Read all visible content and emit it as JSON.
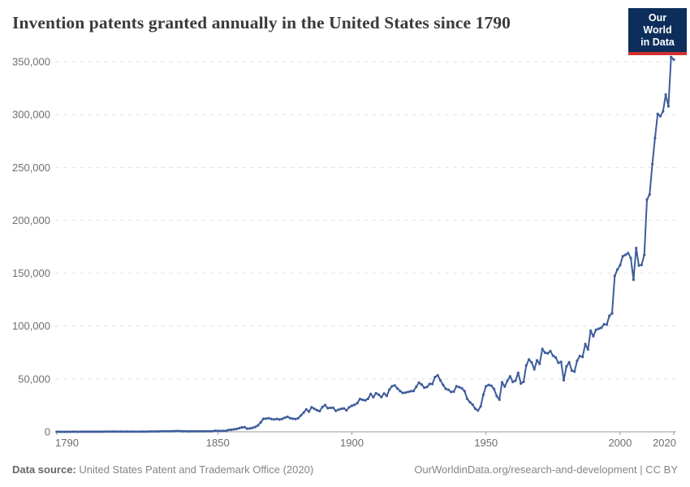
{
  "header": {
    "title": "Invention patents granted annually in the United States since 1790",
    "logo": {
      "line1": "Our World",
      "line2": "in Data",
      "bg_color": "#0d2e5b",
      "accent_color": "#cf3130"
    }
  },
  "footer": {
    "source_label": "Data source:",
    "source_text": " United States Patent and Trademark Office (2020)",
    "link": "OurWorldinData.org/research-and-development",
    "separator": " | ",
    "license": "CC BY"
  },
  "chart_data": {
    "type": "line",
    "title": "Invention patents granted annually in the United States since 1790",
    "xlabel": "",
    "ylabel": "",
    "x_start": 1790,
    "x_end": 2020,
    "ylim": [
      0,
      350000
    ],
    "grid": true,
    "legend": "none",
    "line_color": "#3e5c9a",
    "grid_color": "#e1e1e1",
    "axis_color": "#9a9a9a",
    "tick_text_color": "#6e6e6e",
    "y_ticks": [
      {
        "value": 0,
        "label": "0"
      },
      {
        "value": 50000,
        "label": "50,000"
      },
      {
        "value": 100000,
        "label": "100,000"
      },
      {
        "value": 150000,
        "label": "150,000"
      },
      {
        "value": 200000,
        "label": "200,000"
      },
      {
        "value": 250000,
        "label": "250,000"
      },
      {
        "value": 300000,
        "label": "300,000"
      },
      {
        "value": 350000,
        "label": "350,000"
      }
    ],
    "x_ticks": [
      {
        "value": 1790,
        "label": "1790",
        "anchor": "start"
      },
      {
        "value": 1850,
        "label": "1850",
        "anchor": "middle"
      },
      {
        "value": 1900,
        "label": "1900",
        "anchor": "middle"
      },
      {
        "value": 1950,
        "label": "1950",
        "anchor": "middle"
      },
      {
        "value": 2000,
        "label": "2000",
        "anchor": "middle"
      },
      {
        "value": 2020,
        "label": "2020",
        "anchor": "end"
      }
    ],
    "series": [
      {
        "name": "United States",
        "x_start_year": 1790,
        "values": [
          3,
          33,
          11,
          20,
          22,
          12,
          44,
          51,
          28,
          44,
          41,
          44,
          65,
          97,
          84,
          57,
          63,
          99,
          158,
          203,
          223,
          215,
          238,
          181,
          210,
          173,
          206,
          174,
          222,
          156,
          155,
          168,
          200,
          173,
          228,
          304,
          323,
          331,
          368,
          447,
          544,
          573,
          474,
          586,
          630,
          752,
          702,
          426,
          514,
          404,
          458,
          490,
          488,
          493,
          478,
          473,
          566,
          495,
          583,
          984,
          883,
          752,
          885,
          844,
          1755,
          1881,
          2302,
          2674,
          3455,
          4160,
          4357,
          3020,
          3214,
          3773,
          4630,
          6088,
          8863,
          12277,
          12526,
          12931,
          12137,
          11659,
          12180,
          11616,
          12230,
          13291,
          14169,
          12920,
          12345,
          12125,
          12903,
          15500,
          18091,
          21162,
          19118,
          23285,
          21767,
          20403,
          19551,
          23324,
          25313,
          22312,
          22647,
          22750,
          19855,
          20856,
          21822,
          22067,
          20377,
          23278,
          24644,
          25546,
          27119,
          31029,
          30258,
          29775,
          31170,
          35859,
          32735,
          36561,
          35141,
          32856,
          36198,
          33917,
          39892,
          43118,
          43892,
          40935,
          38452,
          36797,
          37060,
          37798,
          38369,
          38616,
          42574,
          46432,
          44733,
          41717,
          42357,
          45267,
          45226,
          51756,
          53458,
          48774,
          44420,
          40618,
          39782,
          37683,
          38061,
          43073,
          42238,
          41109,
          38449,
          31054,
          28053,
          25695,
          21803,
          20191,
          23963,
          35131,
          43040,
          44326,
          43616,
          40468,
          33809,
          30432,
          46817,
          42744,
          48330,
          52408,
          47170,
          48368,
          55691,
          45679,
          47376,
          62857,
          68406,
          65652,
          59104,
          67559,
          64429,
          78317,
          74810,
          74143,
          76278,
          71994,
          70226,
          65269,
          66102,
          48854,
          61819,
          65771,
          57888,
          56860,
          67200,
          71661,
          70860,
          82952,
          77924,
          95537,
          90365,
          96511,
          97444,
          98342,
          101676,
          101419,
          109645,
          111983,
          147517,
          153485,
          157494,
          166035,
          167331,
          169023,
          164290,
          143806,
          173772,
          157282,
          157772,
          167349,
          219614,
          224505,
          253155,
          277835,
          300678,
          298407,
          303049,
          318829,
          307759,
          354430,
          352013
        ]
      }
    ]
  }
}
